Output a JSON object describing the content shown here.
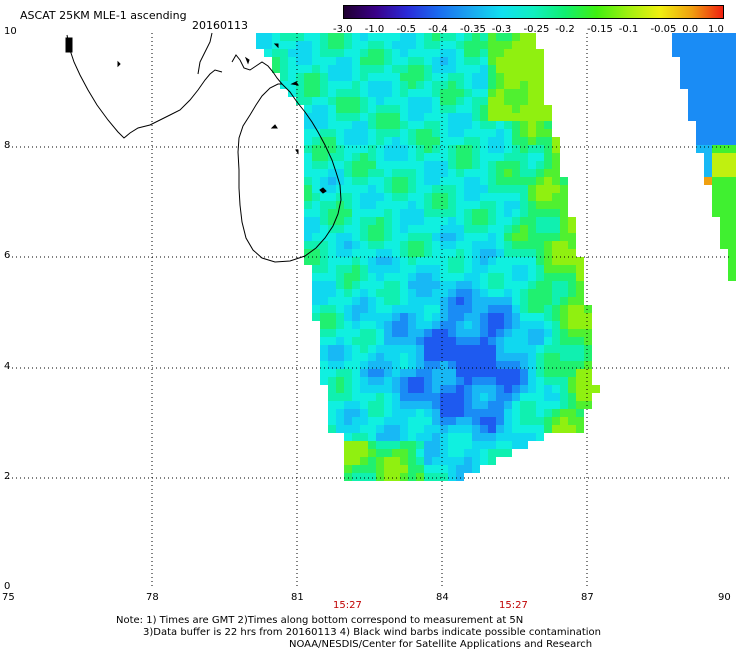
{
  "header": {
    "title": "ASCAT 25KM MLE-1 ascending",
    "date": "20160113"
  },
  "colorbar": {
    "labels": [
      "-3.0",
      "-1.0",
      "-0.5",
      "-0.4",
      "-0.35",
      "-0.3",
      "-0.25",
      "-0.2",
      "-0.15",
      "-0.1",
      "-0.05",
      "0.0",
      "1.0"
    ],
    "colors": [
      "#200030",
      "#3a0088",
      "#2a2ad8",
      "#1a6cf0",
      "#1aa6f0",
      "#10e0f0",
      "#10f0c0",
      "#10f070",
      "#40f010",
      "#a0f010",
      "#f0f010",
      "#f0a010",
      "#f02010"
    ]
  },
  "axes": {
    "x_ticks": [
      "75",
      "78",
      "81",
      "84",
      "87",
      "90"
    ],
    "y_ticks": [
      "0",
      "2",
      "4",
      "6",
      "8",
      "10"
    ]
  },
  "times": [
    "15:27",
    "15:27"
  ],
  "notes": [
    "Note: 1) Times are GMT 2)Times along bottom correspond to measurement at 5N",
    "3)Data buffer is 22 hrs from 20160113 4) Black wind barbs indicate possible contamination",
    "NOAA/NESDIS/Center for Satellite Applications and Research"
  ]
}
